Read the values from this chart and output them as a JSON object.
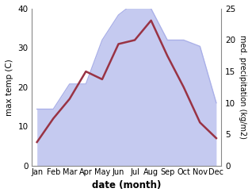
{
  "months": [
    "Jan",
    "Feb",
    "Mar",
    "Apr",
    "May",
    "Jun",
    "Jul",
    "Aug",
    "Sep",
    "Oct",
    "Nov",
    "Dec"
  ],
  "month_indices": [
    0,
    1,
    2,
    3,
    4,
    5,
    6,
    7,
    8,
    9,
    10,
    11
  ],
  "temp": [
    6,
    12,
    17,
    24,
    22,
    31,
    32,
    37,
    28,
    20,
    11,
    7
  ],
  "precip": [
    9,
    9,
    13,
    13,
    20,
    24,
    26,
    25,
    20,
    20,
    19,
    10
  ],
  "temp_color": "#993344",
  "precip_fill_color": "#c5caf0",
  "precip_edge_color": "#aab0e8",
  "xlabel": "date (month)",
  "ylabel_left": "max temp (C)",
  "ylabel_right": "med. precipitation (kg/m2)",
  "ylim_left": [
    0,
    40
  ],
  "ylim_right": [
    0,
    25
  ],
  "yticks_left": [
    0,
    10,
    20,
    30,
    40
  ],
  "yticks_right": [
    0,
    5,
    10,
    15,
    20,
    25
  ],
  "background_color": "#ffffff",
  "figsize": [
    3.18,
    2.47
  ],
  "dpi": 100
}
